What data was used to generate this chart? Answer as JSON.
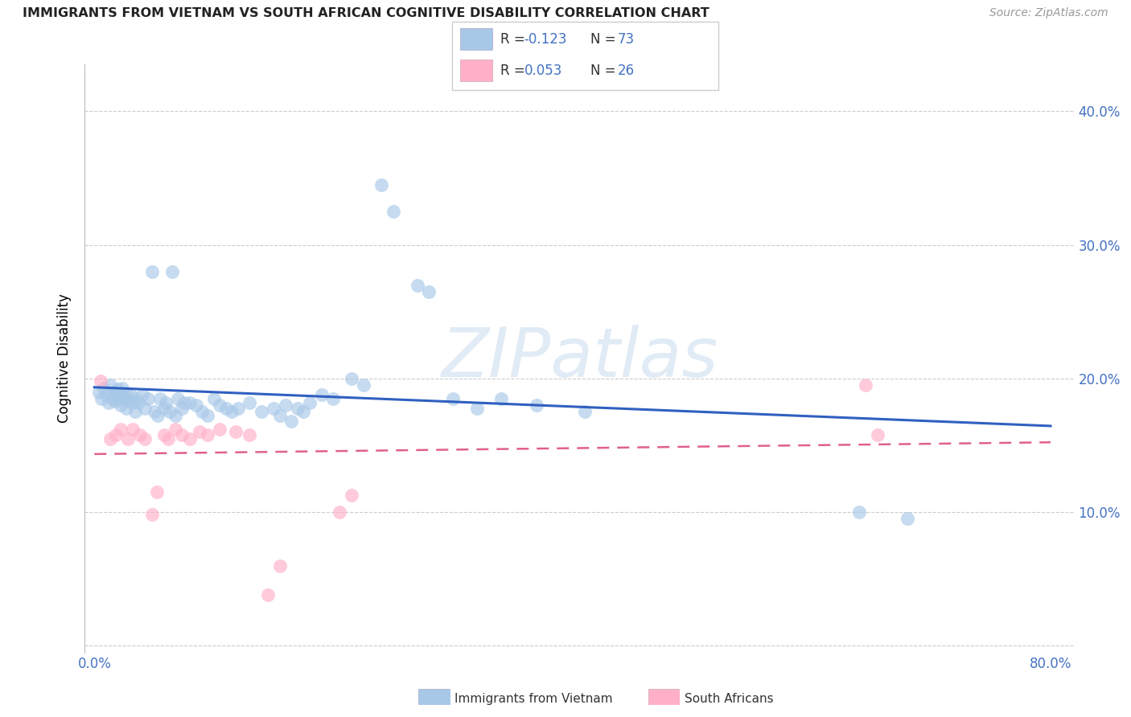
{
  "title": "IMMIGRANTS FROM VIETNAM VS SOUTH AFRICAN COGNITIVE DISABILITY CORRELATION CHART",
  "source": "Source: ZipAtlas.com",
  "ylabel": "Cognitive Disability",
  "xlim": [
    -0.008,
    0.82
  ],
  "ylim": [
    -0.005,
    0.435
  ],
  "x_ticks": [
    0.0,
    0.1,
    0.2,
    0.3,
    0.4,
    0.5,
    0.6,
    0.7,
    0.8
  ],
  "x_tick_labels": [
    "0.0%",
    "",
    "",
    "",
    "",
    "",
    "",
    "",
    "80.0%"
  ],
  "y_ticks": [
    0.0,
    0.1,
    0.2,
    0.3,
    0.4
  ],
  "y_tick_labels_right": [
    "",
    "10.0%",
    "20.0%",
    "30.0%",
    "40.0%"
  ],
  "blue_color": "#A8C8E8",
  "pink_color": "#FFB0C8",
  "blue_line_color": "#3060C0",
  "pink_line_color": "#E06090",
  "tick_color": "#4472C4",
  "grid_color": "#CCCCCC",
  "title_fontsize": 11.5,
  "source_fontsize": 10,
  "watermark_text": "ZIPatlas",
  "legend_label1": "R = -0.123   N = 73",
  "legend_label2": "R = 0.053   N = 26",
  "bottom_legend1": "Immigrants from Vietnam",
  "bottom_legend2": "South Africans",
  "blue_x": [
    0.004,
    0.006,
    0.008,
    0.01,
    0.012,
    0.013,
    0.015,
    0.016,
    0.017,
    0.018,
    0.019,
    0.02,
    0.021,
    0.022,
    0.023,
    0.024,
    0.025,
    0.026,
    0.027,
    0.028,
    0.03,
    0.032,
    0.034,
    0.035,
    0.037,
    0.04,
    0.042,
    0.045,
    0.048,
    0.05,
    0.053,
    0.055,
    0.058,
    0.06,
    0.063,
    0.065,
    0.068,
    0.07,
    0.073,
    0.075,
    0.08,
    0.085,
    0.09,
    0.095,
    0.1,
    0.105,
    0.11,
    0.115,
    0.12,
    0.13,
    0.14,
    0.15,
    0.155,
    0.16,
    0.165,
    0.17,
    0.175,
    0.18,
    0.19,
    0.2,
    0.215,
    0.225,
    0.24,
    0.25,
    0.27,
    0.28,
    0.3,
    0.32,
    0.34,
    0.37,
    0.41,
    0.64,
    0.68
  ],
  "blue_y": [
    0.19,
    0.185,
    0.193,
    0.188,
    0.182,
    0.195,
    0.185,
    0.19,
    0.183,
    0.188,
    0.192,
    0.185,
    0.188,
    0.18,
    0.193,
    0.186,
    0.185,
    0.189,
    0.178,
    0.183,
    0.188,
    0.182,
    0.175,
    0.185,
    0.182,
    0.188,
    0.178,
    0.185,
    0.28,
    0.175,
    0.172,
    0.185,
    0.178,
    0.182,
    0.175,
    0.28,
    0.172,
    0.185,
    0.178,
    0.182,
    0.182,
    0.18,
    0.175,
    0.172,
    0.185,
    0.18,
    0.178,
    0.175,
    0.178,
    0.182,
    0.175,
    0.178,
    0.172,
    0.18,
    0.168,
    0.178,
    0.175,
    0.182,
    0.188,
    0.185,
    0.2,
    0.195,
    0.345,
    0.325,
    0.27,
    0.265,
    0.185,
    0.178,
    0.185,
    0.18,
    0.175,
    0.1,
    0.095
  ],
  "pink_x": [
    0.005,
    0.013,
    0.018,
    0.022,
    0.028,
    0.032,
    0.038,
    0.042,
    0.048,
    0.052,
    0.058,
    0.062,
    0.068,
    0.073,
    0.08,
    0.088,
    0.095,
    0.105,
    0.118,
    0.13,
    0.145,
    0.155,
    0.205,
    0.215,
    0.645,
    0.655
  ],
  "pink_y": [
    0.198,
    0.155,
    0.158,
    0.162,
    0.155,
    0.162,
    0.158,
    0.155,
    0.098,
    0.115,
    0.158,
    0.155,
    0.162,
    0.158,
    0.155,
    0.16,
    0.158,
    0.162,
    0.16,
    0.158,
    0.038,
    0.06,
    0.1,
    0.113,
    0.195,
    0.158
  ]
}
